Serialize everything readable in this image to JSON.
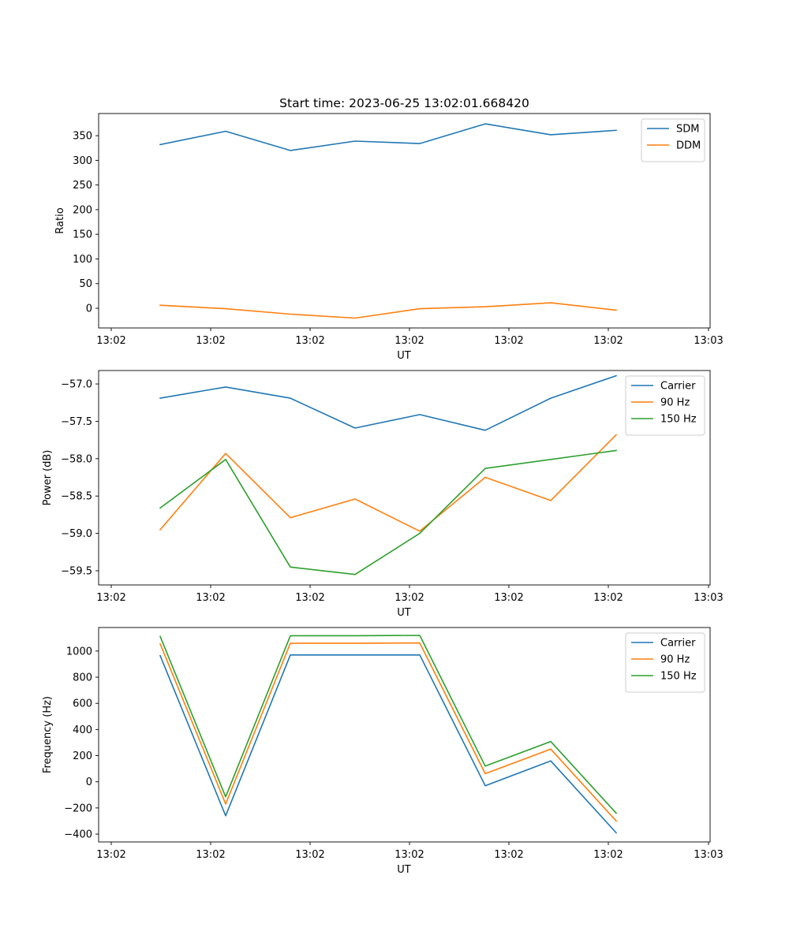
{
  "figure": {
    "title": "Start time: 2023-06-25 13:02:01.668420"
  },
  "chart_data": [
    {
      "type": "line",
      "ylabel": "Ratio",
      "xlabel": "UT",
      "x_tick_labels": [
        "13:02",
        "13:02",
        "13:02",
        "13:02",
        "13:02",
        "13:02",
        "13:03"
      ],
      "y_ticks": [
        0,
        50,
        100,
        150,
        200,
        250,
        300,
        350
      ],
      "ylim": [
        -40,
        395
      ],
      "legend": "top-right",
      "series": [
        {
          "name": "SDM",
          "color": "#1f77b4",
          "values": [
            332,
            359,
            320,
            339,
            334,
            374,
            352,
            361
          ]
        },
        {
          "name": "DDM",
          "color": "#ff7f0e",
          "values": [
            6,
            -1,
            -12,
            -20,
            -1,
            3,
            11,
            -4
          ]
        }
      ]
    },
    {
      "type": "line",
      "ylabel": "Power (dB)",
      "xlabel": "UT",
      "x_tick_labels": [
        "13:02",
        "13:02",
        "13:02",
        "13:02",
        "13:02",
        "13:02",
        "13:03"
      ],
      "y_ticks": [
        -59.5,
        -59.0,
        -58.5,
        -58.0,
        -57.5,
        -57.0
      ],
      "y_tick_labels": [
        "−59.5",
        "−59.0",
        "−58.5",
        "−58.0",
        "−57.5",
        "−57.0"
      ],
      "ylim": [
        -59.69,
        -56.82
      ],
      "legend": "top-right",
      "series": [
        {
          "name": "Carrier",
          "color": "#1f77b4",
          "values": [
            -57.19,
            -57.04,
            -57.19,
            -57.59,
            -57.41,
            -57.62,
            -57.19,
            -56.89
          ]
        },
        {
          "name": "90 Hz",
          "color": "#ff7f0e",
          "values": [
            -58.95,
            -57.93,
            -58.79,
            -58.54,
            -58.97,
            -58.25,
            -58.56,
            -57.68
          ]
        },
        {
          "name": "150 Hz",
          "color": "#2ca02c",
          "values": [
            -58.66,
            -58.01,
            -59.45,
            -59.55,
            -59.0,
            -58.13,
            -58.01,
            -57.89
          ]
        }
      ]
    },
    {
      "type": "line",
      "ylabel": "Frequency (Hz)",
      "xlabel": "UT",
      "x_tick_labels": [
        "13:02",
        "13:02",
        "13:02",
        "13:02",
        "13:02",
        "13:02",
        "13:03"
      ],
      "y_ticks": [
        -400,
        -200,
        0,
        200,
        400,
        600,
        800,
        1000
      ],
      "y_tick_labels": [
        "−400",
        "−200",
        "0",
        "200",
        "400",
        "600",
        "800",
        "1000"
      ],
      "ylim": [
        -460,
        1180
      ],
      "legend": "top-right",
      "series": [
        {
          "name": "Carrier",
          "color": "#1f77b4",
          "values": [
            965,
            -260,
            970,
            970,
            970,
            -30,
            160,
            -390
          ]
        },
        {
          "name": "90 Hz",
          "color": "#ff7f0e",
          "values": [
            1055,
            -170,
            1060,
            1060,
            1062,
            62,
            250,
            -300
          ]
        },
        {
          "name": "150 Hz",
          "color": "#2ca02c",
          "values": [
            1112,
            -115,
            1117,
            1117,
            1120,
            120,
            308,
            -240
          ]
        }
      ]
    }
  ]
}
